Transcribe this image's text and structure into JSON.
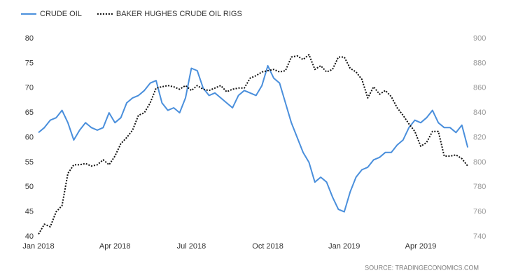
{
  "chart_data": {
    "type": "line",
    "categories": [
      "Jan 2018",
      null,
      null,
      null,
      null,
      null,
      null,
      null,
      null,
      null,
      null,
      null,
      null,
      "Apr 2018",
      null,
      null,
      null,
      null,
      null,
      null,
      null,
      null,
      null,
      null,
      null,
      null,
      "Jul 2018",
      null,
      null,
      null,
      null,
      null,
      null,
      null,
      null,
      null,
      null,
      null,
      null,
      "Oct 2018",
      null,
      null,
      null,
      null,
      null,
      null,
      null,
      null,
      null,
      null,
      null,
      null,
      "Jan 2019",
      null,
      null,
      null,
      null,
      null,
      null,
      null,
      null,
      null,
      null,
      null,
      null,
      "Apr 2019",
      null,
      null,
      null,
      null,
      null,
      null,
      null,
      null
    ],
    "series": [
      {
        "name": "CRUDE OIL",
        "color": "#4a8fdc",
        "values": [
          61,
          62,
          63.5,
          64,
          65.5,
          63,
          59.5,
          61.5,
          63,
          62,
          61.5,
          62,
          65,
          63,
          64,
          67,
          68,
          68.5,
          69.5,
          71,
          71.5,
          67,
          65.5,
          66,
          65,
          68,
          74,
          73.5,
          70,
          68.5,
          69,
          68,
          67,
          66,
          68.5,
          69.5,
          69,
          68.5,
          70.5,
          74.5,
          72,
          71,
          67,
          63,
          60,
          57,
          55,
          51,
          52,
          51,
          48,
          45.5,
          45,
          49,
          52,
          53.5,
          54,
          55.5,
          56,
          57,
          57,
          58.5,
          59.5,
          62,
          63.5,
          63,
          64,
          65.5,
          63,
          62,
          62,
          61,
          62.5,
          58
        ]
      },
      {
        "name": "BAKER HUGHES CRUDE OIL RIGS",
        "color": "#111111",
        "axis": "y2",
        "values": [
          742,
          750,
          748,
          760,
          765,
          791,
          798,
          798,
          799,
          797,
          798,
          802,
          798,
          805,
          815,
          820,
          826,
          838,
          840,
          848,
          860,
          861,
          862,
          861,
          859,
          862,
          858,
          862,
          859,
          858,
          860,
          862,
          857,
          859,
          860,
          860,
          868,
          870,
          873,
          874,
          875,
          873,
          874,
          885,
          886,
          883,
          887,
          875,
          878,
          873,
          875,
          885,
          885,
          876,
          873,
          867,
          852,
          861,
          855,
          858,
          853,
          844,
          838,
          831,
          825,
          813,
          816,
          825,
          825,
          805,
          805,
          806,
          803,
          797
        ]
      }
    ],
    "ylim": [
      40,
      80
    ],
    "yticks": [
      40,
      45,
      50,
      55,
      60,
      65,
      70,
      75,
      80
    ],
    "y2lim": [
      740,
      900
    ],
    "y2ticks": [
      740,
      760,
      780,
      800,
      820,
      840,
      860,
      880,
      900
    ],
    "grid": false,
    "legend": "top-left",
    "source": "SOURCE: TRADINGECONOMICS.COM"
  }
}
